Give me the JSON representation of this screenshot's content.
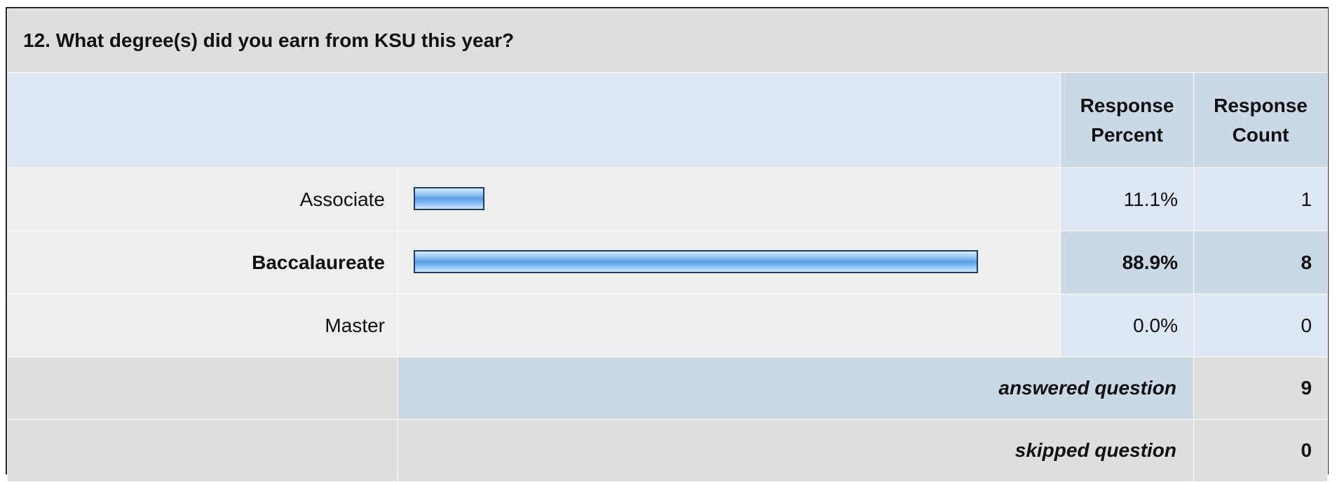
{
  "question": {
    "title": "12. What degree(s) did you earn from KSU this year?"
  },
  "headers": {
    "percent_line1": "Response",
    "percent_line2": "Percent",
    "count_line1": "Response",
    "count_line2": "Count"
  },
  "chart_data": {
    "type": "bar",
    "orientation": "horizontal",
    "title": "12. What degree(s) did you earn from KSU this year?",
    "categories": [
      "Associate",
      "Baccalaureate",
      "Master"
    ],
    "values": [
      11.1,
      88.9,
      0.0
    ],
    "counts": [
      1,
      8,
      0
    ],
    "value_labels": [
      "11.1%",
      "88.9%",
      "0.0%"
    ],
    "highlighted": "Baccalaureate",
    "xlim": [
      0,
      100
    ],
    "grid": false,
    "legend": "none",
    "bar_color": "#5a9de6",
    "bar_border_color": "#1e3a5c"
  },
  "summary": {
    "answered_label": "answered question",
    "answered_value": "9",
    "skipped_label": "skipped question",
    "skipped_value": "0"
  }
}
